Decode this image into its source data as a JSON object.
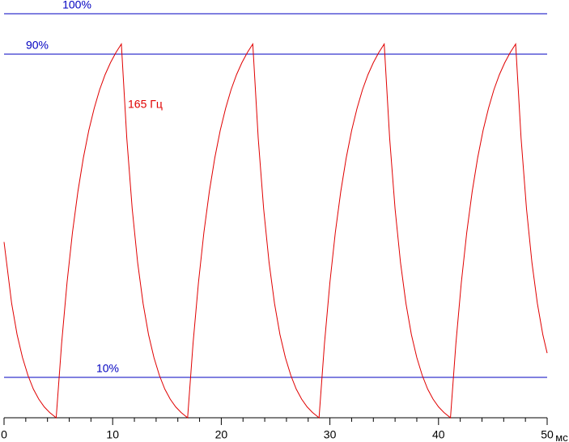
{
  "chart_data": {
    "type": "line",
    "x_unit": "мс",
    "xlim": [
      0,
      50
    ],
    "xticks": [
      0,
      10,
      20,
      30,
      40,
      50
    ],
    "xminorticks": [
      2,
      4,
      6,
      8,
      12,
      14,
      16,
      18,
      22,
      24,
      26,
      28,
      32,
      34,
      36,
      38,
      42,
      44,
      46,
      48
    ],
    "ylim": [
      0,
      103.4
    ],
    "reference_lines": [
      {
        "value": 100,
        "label": "100%"
      },
      {
        "value": 90,
        "label": "90%"
      },
      {
        "value": 10,
        "label": "10%"
      }
    ],
    "reference_color": "#0000c0",
    "series": [
      {
        "name": "165 Гц",
        "color": "#e00000",
        "x": [
          0,
          0.7,
          1.2,
          1.7,
          2.2,
          2.7,
          3.2,
          3.7,
          4.2,
          4.8,
          5.3,
          5.8,
          6.3,
          6.8,
          7.3,
          7.8,
          8.3,
          8.8,
          9.3,
          9.8,
          10.3,
          10.8,
          11.3,
          11.8,
          12.3,
          12.8,
          13.3,
          13.8,
          14.3,
          14.8,
          15.3,
          15.8,
          16.3,
          16.9,
          17.4,
          17.9,
          18.4,
          18.9,
          19.4,
          19.9,
          20.4,
          20.9,
          21.4,
          21.9,
          22.4,
          22.9,
          23.4,
          23.9,
          24.4,
          24.9,
          25.4,
          25.9,
          26.4,
          26.9,
          27.4,
          27.9,
          28.4,
          29.0,
          29.5,
          30.0,
          30.5,
          31.0,
          31.5,
          32.0,
          32.5,
          33.0,
          33.5,
          34.0,
          34.5,
          35.0,
          35.5,
          36.0,
          36.5,
          37.0,
          37.5,
          38.0,
          38.5,
          39.0,
          39.5,
          40.0,
          40.5,
          41.1,
          41.6,
          42.1,
          42.6,
          43.1,
          43.6,
          44.1,
          44.6,
          45.1,
          45.6,
          46.1,
          46.6,
          47.1,
          47.6,
          48.1,
          48.6,
          49.1,
          49.6,
          50
        ],
        "values": [
          43.5,
          28.3,
          20.6,
          14.9,
          10.5,
          7.1,
          4.6,
          2.7,
          1.3,
          0,
          18.4,
          33.5,
          45.9,
          56.0,
          64.3,
          71.1,
          76.6,
          81.2,
          84.9,
          87.9,
          90.4,
          92.5,
          69.2,
          51.7,
          38.4,
          28.3,
          20.6,
          14.9,
          10.5,
          7.1,
          4.6,
          2.7,
          1.3,
          0,
          18.4,
          33.5,
          45.9,
          56.0,
          64.3,
          71.1,
          76.6,
          81.2,
          84.9,
          87.9,
          90.4,
          92.5,
          69.2,
          51.7,
          38.4,
          28.3,
          20.6,
          14.9,
          10.5,
          7.1,
          4.6,
          2.7,
          1.3,
          0,
          18.4,
          33.5,
          45.9,
          56.0,
          64.3,
          71.1,
          76.6,
          81.2,
          84.9,
          87.9,
          90.4,
          92.5,
          69.2,
          51.7,
          38.4,
          28.3,
          20.6,
          14.9,
          10.5,
          7.1,
          4.6,
          2.7,
          1.3,
          0,
          18.4,
          33.5,
          45.9,
          56.0,
          64.3,
          71.1,
          76.6,
          81.2,
          84.9,
          87.9,
          90.4,
          92.5,
          69.2,
          51.7,
          38.4,
          28.3,
          20.6,
          16
        ]
      }
    ]
  }
}
